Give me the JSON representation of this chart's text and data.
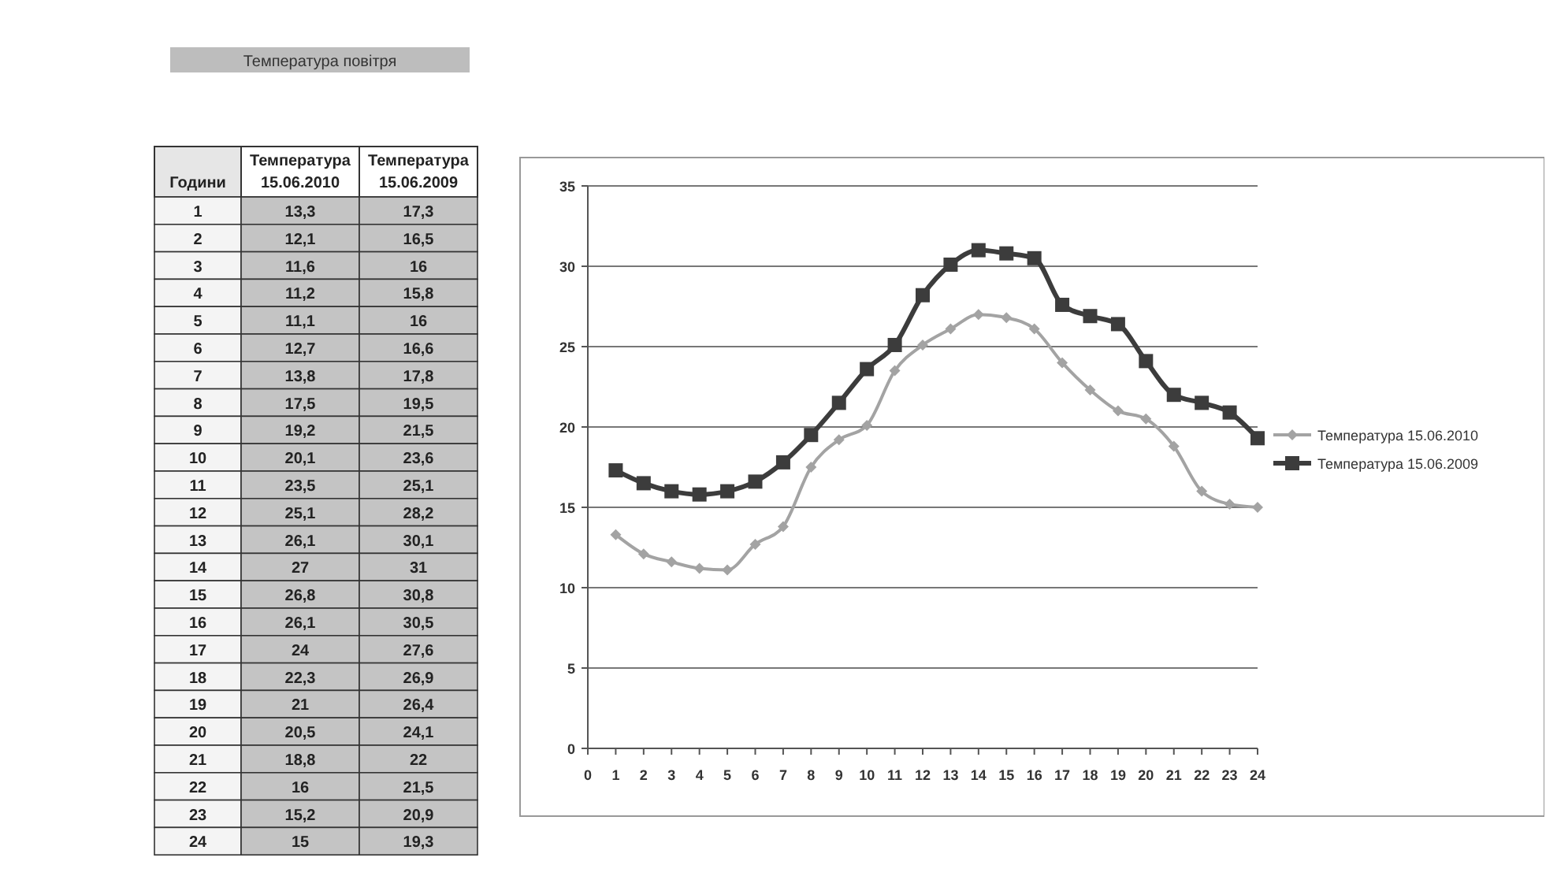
{
  "chart_data": [
    {
      "type": "other",
      "title": "Температура повітря",
      "annotations": [
        "Години",
        "Температура 15.06.2010",
        "Температура 15.06.2009",
        "1",
        "13,3",
        "17,3",
        "2",
        "12,1",
        "16,5",
        "3",
        "11,6",
        "16",
        "4",
        "11,2",
        "15,8",
        "5",
        "11,1",
        "16",
        "6",
        "12,7",
        "16,6",
        "7",
        "13,8",
        "17,8",
        "8",
        "17,5",
        "19,5",
        "9",
        "19,2",
        "21,5",
        "10",
        "20,1",
        "23,6",
        "11",
        "23,5",
        "25,1",
        "12",
        "25,1",
        "28,2",
        "13",
        "26,1",
        "30,1",
        "14",
        "27",
        "31",
        "15",
        "26,8",
        "30,8",
        "16",
        "26,1",
        "30,5",
        "17",
        "24",
        "27,6",
        "18",
        "22,3",
        "26,9",
        "19",
        "21",
        "26,4",
        "20",
        "20,5",
        "24,1",
        "21",
        "18,8",
        "22",
        "22",
        "16",
        "21,5",
        "23",
        "15,2",
        "20,9",
        "24",
        "15",
        "19,3"
      ]
    },
    {
      "type": "line",
      "x": [
        1,
        2,
        3,
        4,
        5,
        6,
        7,
        8,
        9,
        10,
        11,
        12,
        13,
        14,
        15,
        16,
        17,
        18,
        19,
        20,
        21,
        22,
        23,
        24
      ],
      "xlim": [
        0,
        24
      ],
      "xticks": [
        0,
        1,
        2,
        3,
        4,
        5,
        6,
        7,
        8,
        9,
        10,
        11,
        12,
        13,
        14,
        15,
        16,
        17,
        18,
        19,
        20,
        21,
        22,
        23,
        24
      ],
      "ylim": [
        0,
        35
      ],
      "yticks": [
        0,
        5,
        10,
        15,
        20,
        25,
        30,
        35
      ],
      "grid": "y",
      "legend": "right",
      "series": [
        {
          "name": "Температура 15.06.2010",
          "color": "#a3a3a3",
          "marker": "diamond",
          "values": [
            13.3,
            12.1,
            11.6,
            11.2,
            11.1,
            12.7,
            13.8,
            17.5,
            19.2,
            20.1,
            23.5,
            25.1,
            26.1,
            27,
            26.8,
            26.1,
            24,
            22.3,
            21,
            20.5,
            18.8,
            16,
            15.2,
            15
          ]
        },
        {
          "name": "Температура 15.06.2009",
          "color": "#3c3c3c",
          "marker": "square",
          "values": [
            17.3,
            16.5,
            16,
            15.8,
            16,
            16.6,
            17.8,
            19.5,
            21.5,
            23.6,
            25.1,
            28.2,
            30.1,
            31,
            30.8,
            30.5,
            27.6,
            26.9,
            26.4,
            24.1,
            22,
            21.5,
            20.9,
            19.3
          ]
        }
      ]
    }
  ]
}
